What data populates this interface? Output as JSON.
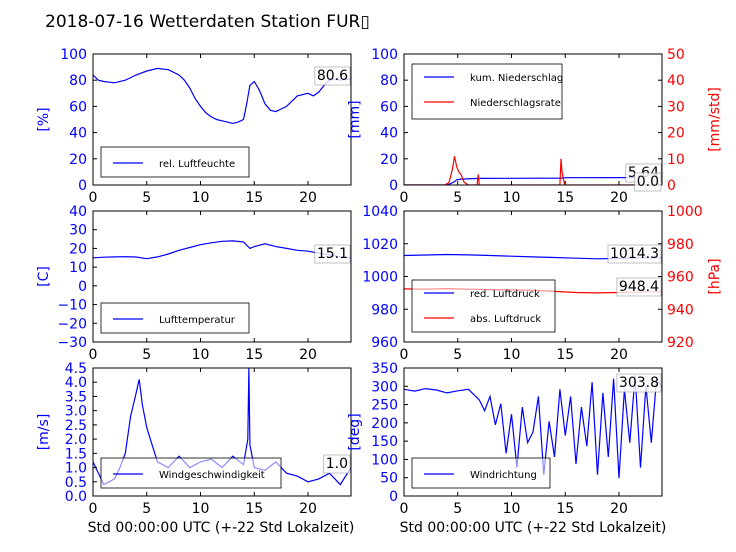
{
  "title": "2018-07-16 Wetterdaten Station FUR▯",
  "xlabel": "Std 00:00:00 UTC (+-22 Std Lokalzeit)",
  "colors": {
    "left_axis": "#0000ff",
    "right_axis": "#ff0000",
    "faint_series": "#7777ff"
  },
  "chart_data": [
    {
      "type": "line",
      "xlim": [
        0,
        24
      ],
      "xticks": [
        "0",
        "5",
        "10",
        "15",
        "20"
      ],
      "ylabel": "[%]",
      "ylim": [
        0,
        100
      ],
      "yticks": [
        "0",
        "20",
        "40",
        "60",
        "80",
        "100"
      ],
      "annotation": "80.6",
      "legend": {
        "placement": "lower-left"
      },
      "series": [
        {
          "name": "rel. Luftfeuchte",
          "color": "#0000ff",
          "x": [
            0,
            0.5,
            1,
            2,
            3,
            4,
            5,
            6,
            7,
            8,
            8.5,
            9,
            9.5,
            10,
            10.5,
            11,
            11.5,
            12,
            12.5,
            13,
            13.5,
            14,
            14.3,
            14.6,
            15,
            15.5,
            16,
            16.5,
            17,
            17.5,
            18,
            18.5,
            19,
            20,
            20.5,
            21,
            21.5,
            22,
            22.5,
            23,
            24
          ],
          "y": [
            84,
            80,
            79,
            78,
            80,
            84,
            87,
            89,
            88,
            84,
            80,
            74,
            66,
            60,
            55,
            52,
            50,
            49,
            48,
            47,
            48,
            50,
            62,
            76,
            79,
            72,
            62,
            57,
            56,
            58,
            60,
            64,
            68,
            70,
            68,
            71,
            76,
            80,
            81,
            80,
            81
          ]
        }
      ]
    },
    {
      "type": "line",
      "xlim": [
        0,
        24
      ],
      "xticks": [
        "0",
        "5",
        "10",
        "15",
        "20"
      ],
      "ylabel": "[mm]",
      "ylim": [
        0,
        100
      ],
      "yticks": [
        "0",
        "20",
        "40",
        "60",
        "80",
        "100"
      ],
      "ylabel_right": "[mm/std]",
      "ylim_right": [
        0,
        50
      ],
      "yticks_right": [
        "0",
        "10",
        "20",
        "30",
        "40",
        "50"
      ],
      "annotations": [
        "5.64",
        "0.0"
      ],
      "legend": {
        "placement": "upper-left"
      },
      "series": [
        {
          "name": "kum. Niederschlag",
          "color": "#0000ff",
          "axis": "left",
          "x": [
            0,
            4,
            4.6,
            4.9,
            5.3,
            7,
            10,
            14.6,
            15,
            20,
            24
          ],
          "y": [
            0,
            0,
            2,
            4,
            4.5,
            5,
            5.1,
            5.3,
            5.6,
            5.64,
            5.64
          ]
        },
        {
          "name": "Niederschlagsrate",
          "color": "#ff0000",
          "axis": "right",
          "x": [
            0,
            3.8,
            4.2,
            4.5,
            4.7,
            4.9,
            5.1,
            5.3,
            5.6,
            6,
            6.8,
            6.9,
            7.0,
            8,
            14.5,
            14.6,
            14.7,
            14.9,
            15,
            24
          ],
          "y": [
            0,
            0,
            1,
            6,
            11,
            7,
            5,
            4,
            1,
            0,
            0,
            4,
            0,
            0,
            0,
            10,
            5,
            1,
            0,
            0
          ]
        }
      ]
    },
    {
      "type": "line",
      "xlim": [
        0,
        24
      ],
      "xticks": [
        "0",
        "5",
        "10",
        "15",
        "20"
      ],
      "ylabel": "[C]",
      "ylim": [
        -30,
        40
      ],
      "yticks": [
        "−30",
        "−20",
        "−10",
        "0",
        "10",
        "20",
        "30",
        "40"
      ],
      "annotation": "15.1",
      "legend": {
        "placement": "lower-left"
      },
      "series": [
        {
          "name": "Lufttemperatur",
          "color": "#0000ff",
          "x": [
            0,
            1,
            2,
            3,
            4,
            5,
            6,
            7,
            8,
            9,
            10,
            11,
            12,
            13,
            14,
            14.6,
            15,
            16,
            17,
            18,
            19,
            20,
            21,
            22,
            23,
            24
          ],
          "y": [
            15,
            15.3,
            15.5,
            15.6,
            15.4,
            14.5,
            15.5,
            17,
            19,
            20.5,
            22,
            23,
            23.8,
            24,
            23.5,
            20,
            21,
            22.5,
            21,
            20,
            19,
            18.5,
            17.5,
            16.5,
            15.5,
            15
          ]
        }
      ]
    },
    {
      "type": "line",
      "xlim": [
        0,
        24
      ],
      "xticks": [
        "0",
        "5",
        "10",
        "15",
        "20"
      ],
      "ylim": [
        950,
        1050
      ],
      "yticks": [
        "960",
        "980",
        "1000",
        "1020",
        "1040"
      ],
      "ylabel_right": "[hPa]",
      "ylim_right": [
        910,
        1010
      ],
      "yticks_right": [
        "920",
        "940",
        "960",
        "980",
        "1000"
      ],
      "annotations": [
        "1014.3",
        "948.4"
      ],
      "legend": {
        "placement": "lower-left"
      },
      "series": [
        {
          "name": "red. Luftdruck",
          "color": "#0000ff",
          "axis": "left",
          "x": [
            0,
            2,
            4,
            6,
            8,
            10,
            12,
            14,
            16,
            18,
            20,
            22,
            24
          ],
          "y": [
            1016,
            1016.4,
            1016.8,
            1016.5,
            1016,
            1015.5,
            1015,
            1014.5,
            1014,
            1013.5,
            1013.8,
            1014.2,
            1014.3
          ]
        },
        {
          "name": "abs. Luftdruck",
          "color": "#ff0000",
          "axis": "right",
          "x": [
            0,
            2,
            4,
            6,
            8,
            10,
            12,
            14,
            16,
            18,
            20,
            22,
            24
          ],
          "y": [
            950.5,
            950.3,
            950.8,
            950.3,
            950,
            949.8,
            949.5,
            948.6,
            947.8,
            947.5,
            947.8,
            948.2,
            948.4
          ]
        }
      ]
    },
    {
      "type": "line",
      "xlim": [
        0,
        24
      ],
      "xticks": [
        "0",
        "5",
        "10",
        "15",
        "20"
      ],
      "ylabel": "[m/s]",
      "ylim": [
        0,
        4.5
      ],
      "yticks": [
        "0.0",
        "0.5",
        "1.0",
        "1.5",
        "2.0",
        "2.5",
        "3.0",
        "3.5",
        "4.0",
        "4.5"
      ],
      "annotation": "1.0",
      "legend": {
        "placement": "lower-left"
      },
      "series": [
        {
          "name": "Windgeschwindigkeit",
          "color": "#0000ff",
          "x": [
            0,
            0.5,
            1,
            1.5,
            2,
            2.5,
            3,
            3.5,
            4,
            4.3,
            4.6,
            5,
            5.5,
            6,
            7,
            8,
            9,
            10,
            11,
            12,
            13,
            14,
            14.4,
            14.5,
            14.6,
            15,
            16,
            17,
            18,
            19,
            20,
            21,
            22,
            23,
            24
          ],
          "y": [
            1.2,
            0.8,
            0.4,
            0.5,
            0.6,
            1.0,
            1.5,
            2.8,
            3.6,
            4.1,
            3.2,
            2.4,
            1.8,
            1.2,
            1.0,
            1.4,
            1.0,
            1.2,
            1.3,
            1.0,
            1.4,
            1.1,
            2.0,
            4.5,
            1.8,
            1.0,
            0.9,
            1.2,
            0.8,
            0.7,
            0.5,
            0.6,
            0.8,
            0.4,
            1.0
          ]
        }
      ]
    },
    {
      "type": "line",
      "xlim": [
        0,
        24
      ],
      "xticks": [
        "0",
        "5",
        "10",
        "15",
        "20"
      ],
      "ylabel": "[deg]",
      "ylim": [
        0,
        360
      ],
      "yticks": [
        "0",
        "50",
        "100",
        "150",
        "200",
        "250",
        "300",
        "350"
      ],
      "annotation": "303.8",
      "legend": {
        "placement": "lower-left"
      },
      "series": [
        {
          "name": "Windrichtung",
          "color": "#0000ff",
          "x": [
            0,
            1,
            2,
            3,
            4,
            5,
            6,
            6.5,
            7,
            7.5,
            8,
            8.5,
            9,
            9.5,
            10,
            10.5,
            11,
            11.5,
            12,
            12.5,
            13,
            13.5,
            14,
            14.5,
            15,
            15.5,
            16,
            16.5,
            17,
            17.5,
            18,
            18.5,
            19,
            19.5,
            20,
            20.5,
            21,
            21.5,
            22,
            22.5,
            23,
            23.5,
            24
          ],
          "y": [
            300,
            295,
            302,
            298,
            290,
            296,
            300,
            285,
            270,
            240,
            280,
            200,
            260,
            120,
            230,
            80,
            250,
            150,
            180,
            280,
            60,
            210,
            110,
            300,
            170,
            280,
            90,
            250,
            140,
            320,
            60,
            290,
            110,
            330,
            50,
            300,
            150,
            340,
            80,
            310,
            150,
            330,
            304
          ]
        }
      ]
    }
  ]
}
